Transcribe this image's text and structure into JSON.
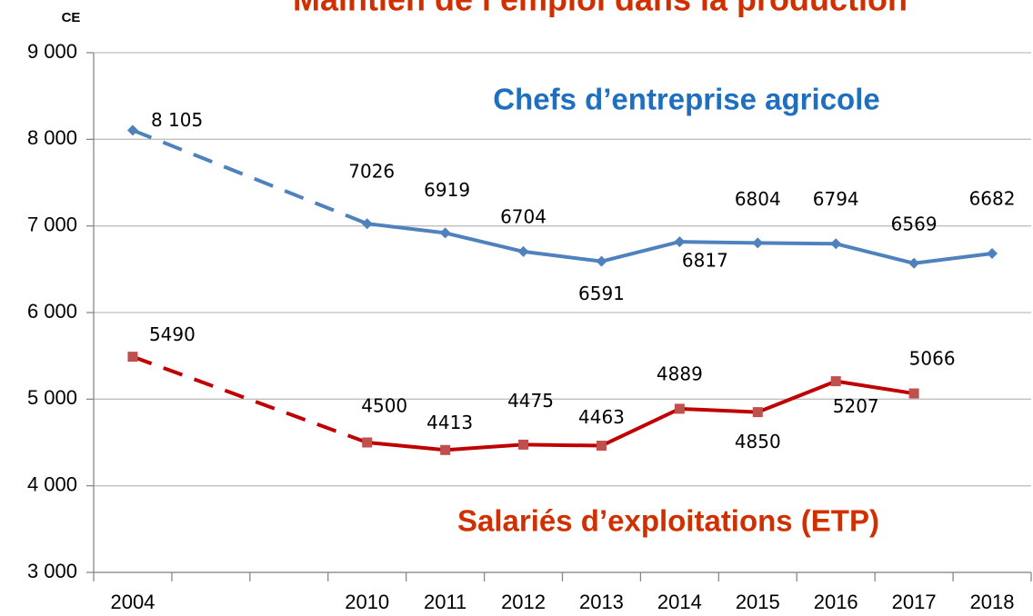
{
  "chart_data": {
    "type": "line",
    "title": "Maintien de l’emploi dans la production",
    "y_label": "CE",
    "annotations": [
      "Chefs d’entreprise agricole",
      "Salariés d’exploitations (ETP)"
    ],
    "categories": [
      "2004",
      null,
      null,
      "2010",
      "2011",
      "2012",
      "2013",
      "2014",
      "2015",
      "2016",
      "2017",
      "2018"
    ],
    "series": [
      {
        "name": "Chefs d’entreprise agricole",
        "color": "#4f81bd",
        "marker": "diamond",
        "gap_style": "dashed",
        "values": [
          8105,
          null,
          null,
          7026,
          6919,
          6704,
          6591,
          6817,
          6804,
          6794,
          6569,
          6682
        ],
        "value_labels": [
          "8 105",
          null,
          null,
          "7026",
          "6919",
          "6704",
          "6591",
          "6817",
          "6804",
          "6794",
          "6569",
          "6682"
        ]
      },
      {
        "name": "Salariés d’exploitations (ETP)",
        "color": "#c00000",
        "marker": "square",
        "gap_style": "dashed",
        "values": [
          5490,
          null,
          null,
          4500,
          4413,
          4475,
          4463,
          4889,
          4850,
          5207,
          5066,
          null
        ]
      }
    ],
    "ylim": [
      3000,
      9000
    ],
    "yticks": [
      {
        "value": 3000,
        "label": "3 000"
      },
      {
        "value": 4000,
        "label": "4 000"
      },
      {
        "value": 5000,
        "label": "5 000"
      },
      {
        "value": 6000,
        "label": "6 000"
      },
      {
        "value": 7000,
        "label": "7 000"
      },
      {
        "value": 8000,
        "label": "8 000"
      },
      {
        "value": 9000,
        "label": "9 000"
      }
    ],
    "grid": true
  }
}
